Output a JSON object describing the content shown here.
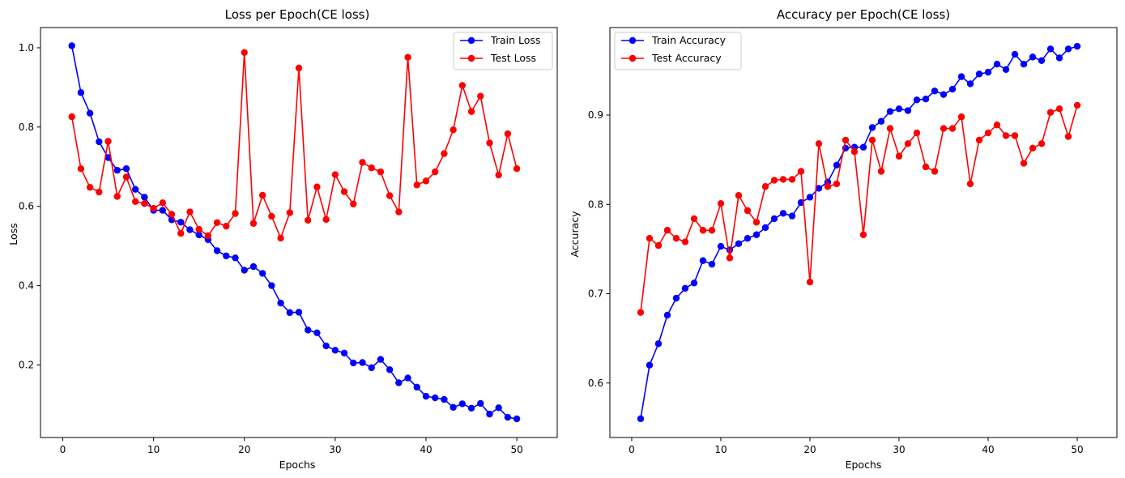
{
  "chart_data": [
    {
      "type": "line",
      "title": "Loss per Epoch(CE loss)",
      "xlabel": "Epochs",
      "ylabel": "Loss",
      "xlim": [
        -2.45,
        54.45
      ],
      "ylim": [
        0.017,
        1.051
      ],
      "xticks": [
        0,
        10,
        20,
        30,
        40,
        50
      ],
      "xtick_labels": [
        "0",
        "10",
        "20",
        "30",
        "40",
        "50"
      ],
      "yticks": [
        0.2,
        0.4,
        0.6,
        0.8,
        1.0
      ],
      "ytick_labels": [
        "0.2",
        "0.4",
        "0.6",
        "0.8",
        "1.0"
      ],
      "grid": false,
      "legend_position": "top-right",
      "x": [
        1,
        2,
        3,
        4,
        5,
        6,
        7,
        8,
        9,
        10,
        11,
        12,
        13,
        14,
        15,
        16,
        17,
        18,
        19,
        20,
        21,
        22,
        23,
        24,
        25,
        26,
        27,
        28,
        29,
        30,
        31,
        32,
        33,
        34,
        35,
        36,
        37,
        38,
        39,
        40,
        41,
        42,
        43,
        44,
        45,
        46,
        47,
        48,
        49,
        50
      ],
      "series": [
        {
          "name": "Train Loss",
          "color": "#0000ff",
          "values": [
            1.005,
            0.887,
            0.835,
            0.763,
            0.723,
            0.691,
            0.695,
            0.643,
            0.623,
            0.59,
            0.59,
            0.566,
            0.56,
            0.541,
            0.528,
            0.516,
            0.488,
            0.475,
            0.47,
            0.439,
            0.448,
            0.431,
            0.4,
            0.356,
            0.332,
            0.333,
            0.288,
            0.281,
            0.248,
            0.237,
            0.23,
            0.205,
            0.206,
            0.193,
            0.214,
            0.188,
            0.155,
            0.167,
            0.144,
            0.121,
            0.117,
            0.113,
            0.093,
            0.102,
            0.091,
            0.103,
            0.076,
            0.092,
            0.068,
            0.064
          ]
        },
        {
          "name": "Test Loss",
          "color": "#ff0000",
          "values": [
            0.826,
            0.695,
            0.648,
            0.636,
            0.764,
            0.625,
            0.674,
            0.612,
            0.607,
            0.595,
            0.609,
            0.58,
            0.532,
            0.586,
            0.542,
            0.526,
            0.559,
            0.55,
            0.582,
            0.988,
            0.557,
            0.628,
            0.575,
            0.52,
            0.584,
            0.949,
            0.565,
            0.649,
            0.567,
            0.68,
            0.637,
            0.606,
            0.711,
            0.697,
            0.687,
            0.627,
            0.586,
            0.976,
            0.654,
            0.664,
            0.687,
            0.733,
            0.793,
            0.905,
            0.839,
            0.878,
            0.76,
            0.679,
            0.783,
            0.695
          ]
        }
      ]
    },
    {
      "type": "line",
      "title": "Accuracy per Epoch(CE loss)",
      "xlabel": "Epochs",
      "ylabel": "Accuracy",
      "xlim": [
        -2.45,
        54.45
      ],
      "ylim": [
        0.539,
        0.998
      ],
      "xticks": [
        0,
        10,
        20,
        30,
        40,
        50
      ],
      "xtick_labels": [
        "0",
        "10",
        "20",
        "30",
        "40",
        "50"
      ],
      "yticks": [
        0.6,
        0.7,
        0.8,
        0.9
      ],
      "ytick_labels": [
        "0.6",
        "0.7",
        "0.8",
        "0.9"
      ],
      "grid": false,
      "legend_position": "top-left",
      "x": [
        1,
        2,
        3,
        4,
        5,
        6,
        7,
        8,
        9,
        10,
        11,
        12,
        13,
        14,
        15,
        16,
        17,
        18,
        19,
        20,
        21,
        22,
        23,
        24,
        25,
        26,
        27,
        28,
        29,
        30,
        31,
        32,
        33,
        34,
        35,
        36,
        37,
        38,
        39,
        40,
        41,
        42,
        43,
        44,
        45,
        46,
        47,
        48,
        49,
        50
      ],
      "series": [
        {
          "name": "Train Accuracy",
          "color": "#0000ff",
          "values": [
            0.56,
            0.62,
            0.644,
            0.676,
            0.695,
            0.706,
            0.712,
            0.737,
            0.733,
            0.753,
            0.749,
            0.756,
            0.762,
            0.766,
            0.774,
            0.784,
            0.79,
            0.787,
            0.802,
            0.808,
            0.818,
            0.825,
            0.844,
            0.863,
            0.864,
            0.864,
            0.886,
            0.893,
            0.904,
            0.907,
            0.905,
            0.917,
            0.918,
            0.927,
            0.923,
            0.929,
            0.943,
            0.935,
            0.946,
            0.948,
            0.957,
            0.951,
            0.968,
            0.957,
            0.965,
            0.961,
            0.974,
            0.964,
            0.974,
            0.977
          ]
        },
        {
          "name": "Test Accuracy",
          "color": "#ff0000",
          "values": [
            0.679,
            0.762,
            0.754,
            0.771,
            0.762,
            0.758,
            0.784,
            0.771,
            0.771,
            0.801,
            0.74,
            0.81,
            0.793,
            0.78,
            0.82,
            0.827,
            0.828,
            0.828,
            0.837,
            0.713,
            0.868,
            0.82,
            0.823,
            0.872,
            0.859,
            0.766,
            0.872,
            0.837,
            0.885,
            0.854,
            0.868,
            0.88,
            0.842,
            0.837,
            0.885,
            0.885,
            0.898,
            0.823,
            0.872,
            0.88,
            0.889,
            0.877,
            0.877,
            0.846,
            0.863,
            0.868,
            0.903,
            0.907,
            0.876,
            0.911
          ]
        }
      ]
    }
  ]
}
